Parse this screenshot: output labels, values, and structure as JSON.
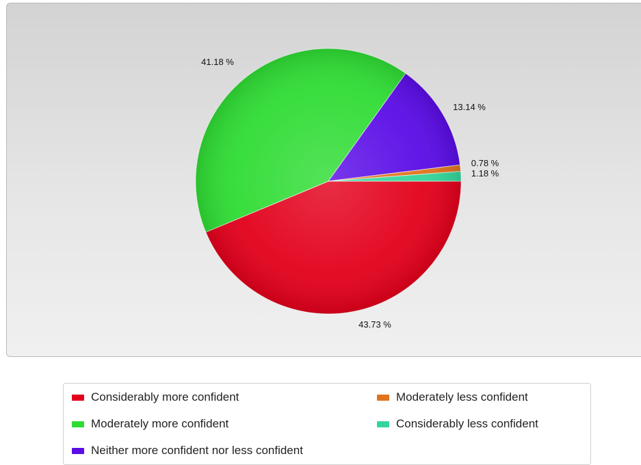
{
  "chart_data": {
    "type": "pie",
    "slices": [
      {
        "name": "Considerably more confident",
        "value": 43.73,
        "label": "43.73 %",
        "color": "#e3001b"
      },
      {
        "name": "Moderately more confident",
        "value": 41.18,
        "label": "41.18 %",
        "color": "#2fdc34"
      },
      {
        "name": "Neither more confident nor less confident",
        "value": 13.14,
        "label": "13.14 %",
        "color": "#5a0ce6"
      },
      {
        "name": "Moderately less confident",
        "value": 0.78,
        "label": "0.78 %",
        "color": "#e0741e"
      },
      {
        "name": "Considerably less confident",
        "value": 1.18,
        "label": "1.18 %",
        "color": "#33d69a"
      }
    ],
    "legend_placement": "bottom"
  },
  "legend": {
    "items": [
      {
        "label": "Considerably more confident",
        "color": "#e3001b"
      },
      {
        "label": "Moderately less confident",
        "color": "#e0741e"
      },
      {
        "label": "Moderately more confident",
        "color": "#2fdc34"
      },
      {
        "label": "Considerably less confident",
        "color": "#33d69a"
      },
      {
        "label": "Neither more confident nor less confident",
        "color": "#5a0ce6"
      }
    ]
  }
}
